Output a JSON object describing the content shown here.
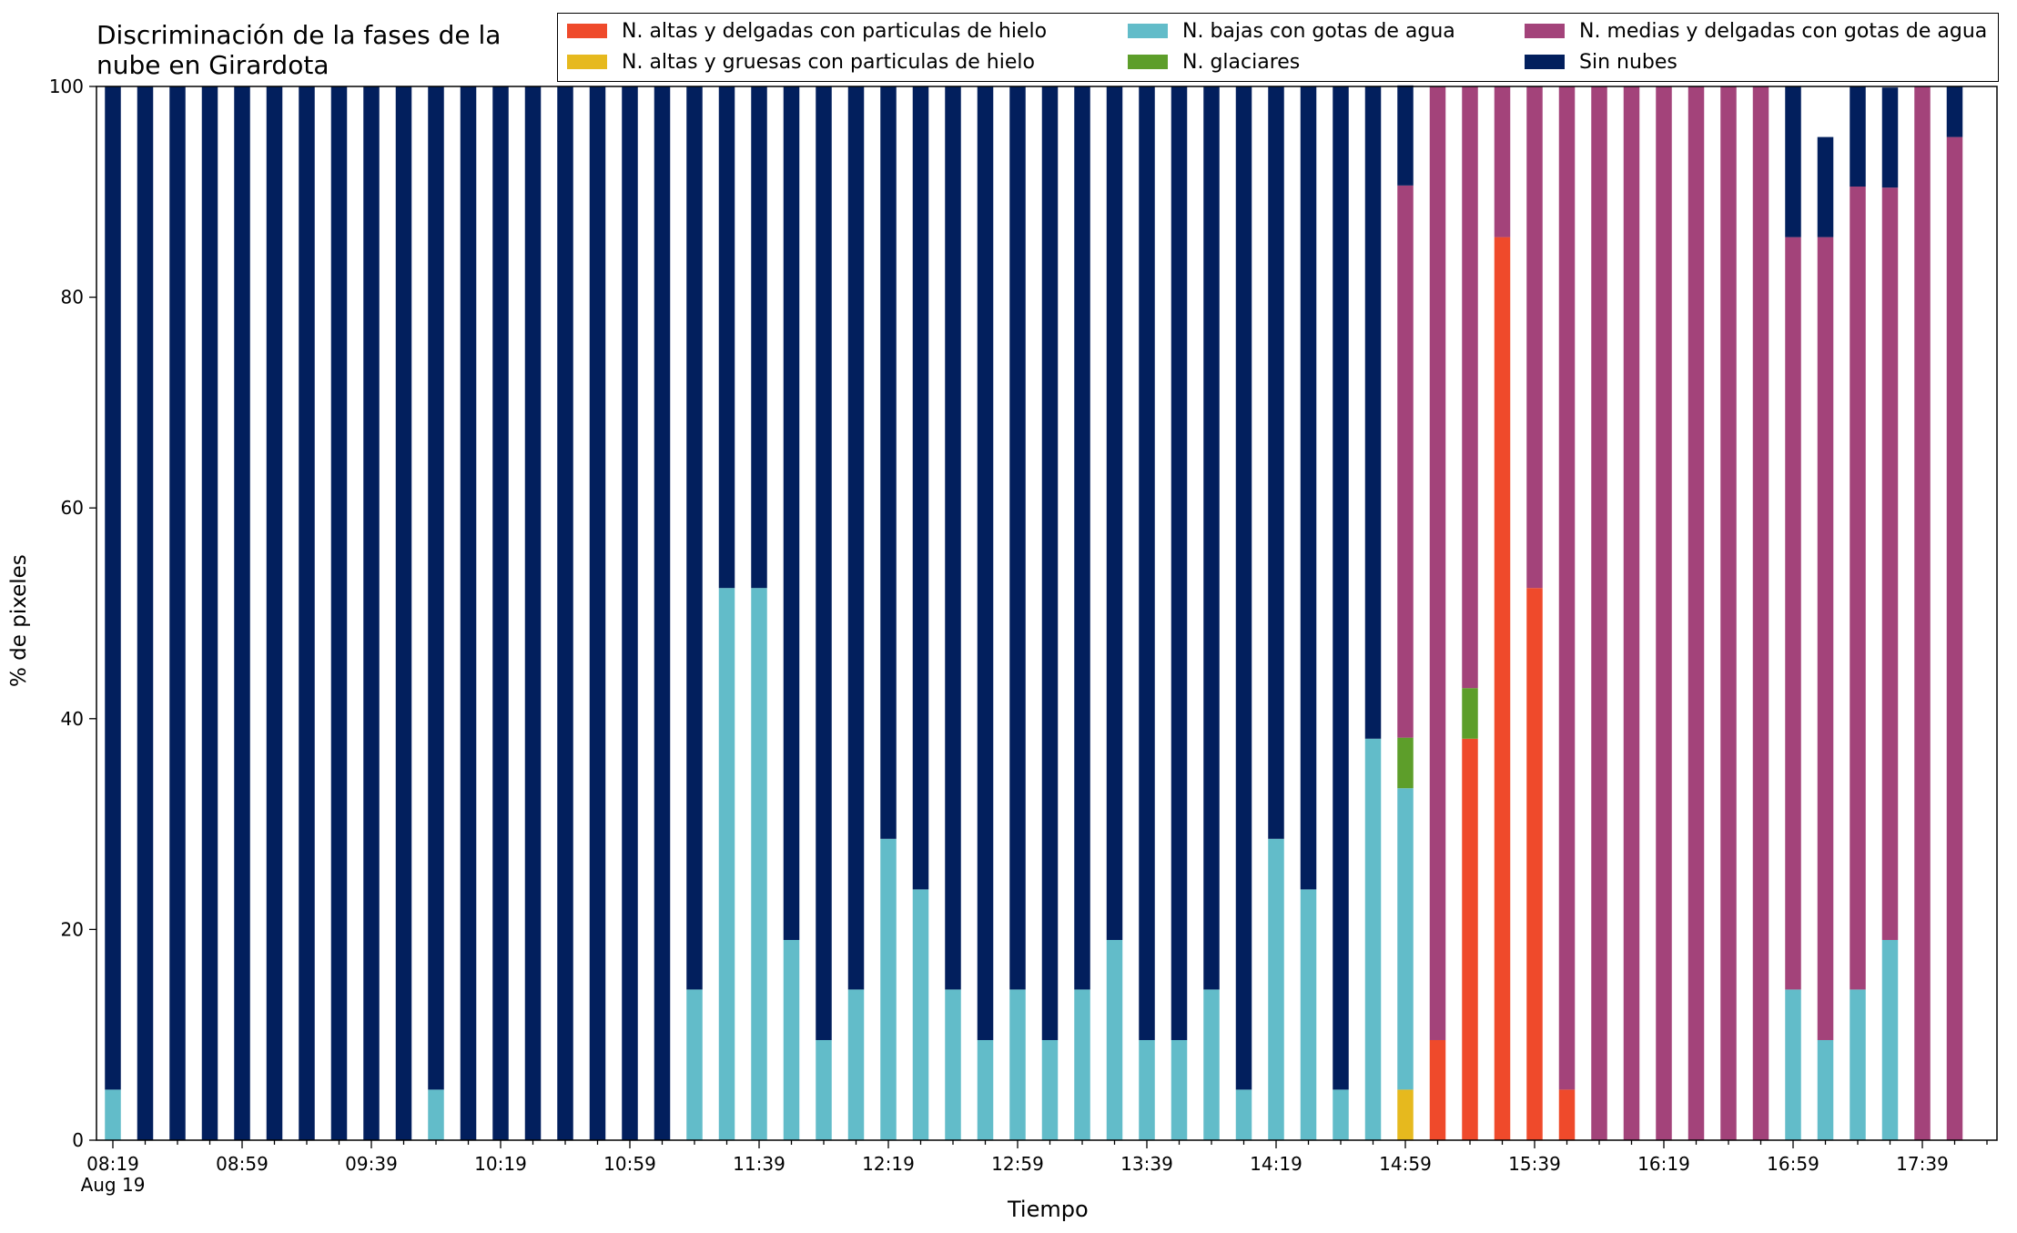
{
  "title": "Discriminación de la fases de la\nnube en Girardota",
  "chart_data": {
    "type": "bar",
    "stacked": true,
    "title": "Discriminación de la fases de la\nnube en Girardota",
    "xlabel": "Tiempo",
    "ylabel": "% de pixeles",
    "ylim": [
      0,
      100
    ],
    "yticks": [
      "0",
      "20",
      "40",
      "60",
      "80",
      "100"
    ],
    "xtick_labels": [
      "08:19\nAug 19",
      "08:59",
      "09:39",
      "10:19",
      "10:59",
      "11:39",
      "12:19",
      "12:59",
      "13:39",
      "14:19",
      "14:59",
      "15:39",
      "16:19",
      "16:59",
      "17:39"
    ],
    "xticks_every": 4,
    "grid": false,
    "legend_position": "top-right",
    "categories": [
      "08:19",
      "08:29",
      "08:39",
      "08:49",
      "08:59",
      "09:09",
      "09:19",
      "09:29",
      "09:39",
      "09:49",
      "09:59",
      "10:09",
      "10:19",
      "10:29",
      "10:39",
      "10:49",
      "10:59",
      "11:09",
      "11:19",
      "11:29",
      "11:39",
      "11:49",
      "11:59",
      "12:09",
      "12:19",
      "12:29",
      "12:39",
      "12:49",
      "12:59",
      "13:09",
      "13:19",
      "13:29",
      "13:39",
      "13:49",
      "13:59",
      "14:09",
      "14:19",
      "14:29",
      "14:39",
      "14:49",
      "14:59",
      "15:09",
      "15:19",
      "15:29",
      "15:39",
      "15:49",
      "15:59",
      "16:09",
      "16:19",
      "16:29",
      "16:39",
      "16:49",
      "16:59",
      "17:09",
      "17:19",
      "17:29",
      "17:39",
      "17:49"
    ],
    "series": [
      {
        "name": "N. altas y delgadas con particulas de hielo",
        "color": "#ef4a2b",
        "values": [
          0,
          0,
          0,
          0,
          0,
          0,
          0,
          0,
          0,
          0,
          0,
          0,
          0,
          0,
          0,
          0,
          0,
          0,
          0,
          0,
          0,
          0,
          0,
          0,
          0,
          0,
          0,
          0,
          0,
          0,
          0,
          0,
          0,
          0,
          0,
          0,
          0,
          0,
          0,
          0,
          0,
          9.5,
          38.1,
          85.7,
          52.4,
          4.8,
          0,
          0,
          0,
          0,
          0,
          0,
          0,
          0,
          0,
          0,
          0,
          0
        ]
      },
      {
        "name": "N. altas y gruesas con particulas de hielo",
        "color": "#e6b91e",
        "values": [
          0,
          0,
          0,
          0,
          0,
          0,
          0,
          0,
          0,
          0,
          0,
          0,
          0,
          0,
          0,
          0,
          0,
          0,
          0,
          0,
          0,
          0,
          0,
          0,
          0,
          0,
          0,
          0,
          0,
          0,
          0,
          0,
          0,
          0,
          0,
          0,
          0,
          0,
          0,
          0,
          4.8,
          0,
          0,
          0,
          0,
          0,
          0,
          0,
          0,
          0,
          0,
          0,
          0,
          0,
          0,
          0,
          0,
          0
        ]
      },
      {
        "name": "N. bajas con gotas de agua",
        "color": "#62bcc9",
        "values": [
          4.8,
          0,
          0,
          0,
          0,
          0,
          0,
          0,
          0,
          0,
          4.8,
          0,
          0,
          0,
          0,
          0,
          0,
          0,
          14.3,
          52.4,
          52.4,
          19.0,
          9.5,
          14.3,
          28.6,
          23.8,
          14.3,
          9.5,
          14.3,
          9.5,
          14.3,
          19.0,
          9.5,
          9.5,
          14.3,
          4.8,
          28.6,
          23.8,
          4.8,
          38.1,
          28.6,
          0,
          0,
          0,
          0,
          0,
          0,
          0,
          0,
          0,
          0,
          0,
          14.3,
          9.5,
          14.3,
          19.0,
          0,
          0
        ]
      },
      {
        "name": "N. glaciares",
        "color": "#5d9e2a",
        "values": [
          0,
          0,
          0,
          0,
          0,
          0,
          0,
          0,
          0,
          0,
          0,
          0,
          0,
          0,
          0,
          0,
          0,
          0,
          0,
          0,
          0,
          0,
          0,
          0,
          0,
          0,
          0,
          0,
          0,
          0,
          0,
          0,
          0,
          0,
          0,
          0,
          0,
          0,
          0,
          0,
          4.8,
          0,
          4.8,
          0,
          0,
          0,
          0,
          0,
          0,
          0,
          0,
          0,
          0,
          0,
          0,
          0,
          0,
          0
        ]
      },
      {
        "name": "N. medias y delgadas con gotas de agua",
        "color": "#a3437a",
        "values": [
          0,
          0,
          0,
          0,
          0,
          0,
          0,
          0,
          0,
          0,
          0,
          0,
          0,
          0,
          0,
          0,
          0,
          0,
          0,
          0,
          0,
          0,
          0,
          0,
          0,
          0,
          0,
          0,
          0,
          0,
          0,
          0,
          0,
          0,
          0,
          0,
          0,
          0,
          0,
          0,
          52.4,
          90.5,
          57.1,
          14.3,
          47.6,
          95.2,
          100,
          100,
          100,
          100,
          100,
          100,
          71.4,
          76.2,
          76.2,
          71.4,
          100,
          95.2
        ]
      },
      {
        "name": "Sin nubes",
        "color": "#021f5d",
        "values": [
          95.2,
          100,
          100,
          100,
          100,
          100,
          100,
          100,
          100,
          100,
          95.2,
          100,
          100,
          100,
          100,
          100,
          100,
          100,
          85.7,
          47.6,
          47.6,
          81.0,
          90.5,
          85.7,
          71.4,
          76.2,
          85.7,
          90.5,
          85.7,
          90.5,
          85.7,
          81.0,
          90.5,
          90.5,
          85.7,
          95.2,
          71.4,
          76.2,
          95.2,
          61.9,
          9.5,
          0,
          0,
          0,
          0,
          0,
          0,
          0,
          0,
          0,
          0,
          0,
          14.3,
          9.5,
          9.5,
          9.5,
          0,
          4.8
        ]
      }
    ]
  },
  "legend": {
    "items": [
      {
        "label": "N. altas y delgadas con particulas de hielo",
        "color": "#ef4a2b"
      },
      {
        "label": "N. altas y gruesas con particulas de hielo",
        "color": "#e6b91e"
      },
      {
        "label": "N. bajas con gotas de agua",
        "color": "#62bcc9"
      },
      {
        "label": "N. glaciares",
        "color": "#5d9e2a"
      },
      {
        "label": "N. medias y delgadas con gotas de agua",
        "color": "#a3437a"
      },
      {
        "label": "Sin nubes",
        "color": "#021f5d"
      }
    ]
  }
}
